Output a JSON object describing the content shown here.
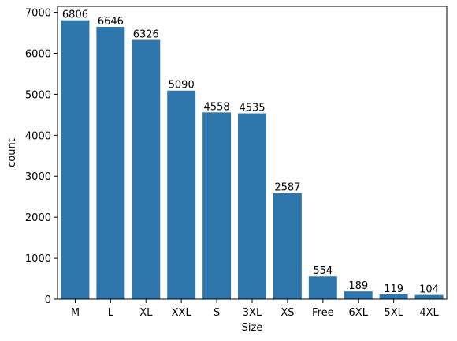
{
  "chart_data": {
    "type": "bar",
    "xlabel": "Size",
    "ylabel": "count",
    "categories": [
      "M",
      "L",
      "XL",
      "XXL",
      "S",
      "3XL",
      "XS",
      "Free",
      "6XL",
      "5XL",
      "4XL"
    ],
    "values": [
      6806,
      6646,
      6326,
      5090,
      4558,
      4535,
      2587,
      554,
      189,
      119,
      104
    ],
    "data_labels": [
      "6806",
      "6646",
      "6326",
      "5090",
      "4558",
      "4535",
      "2587",
      "554",
      "189",
      "119",
      "104"
    ],
    "yticks": [
      0,
      1000,
      2000,
      3000,
      4000,
      5000,
      6000,
      7000
    ],
    "ylim": [
      0,
      7146
    ],
    "bar_color": "#2e75ab",
    "grid": false,
    "legend": false
  }
}
